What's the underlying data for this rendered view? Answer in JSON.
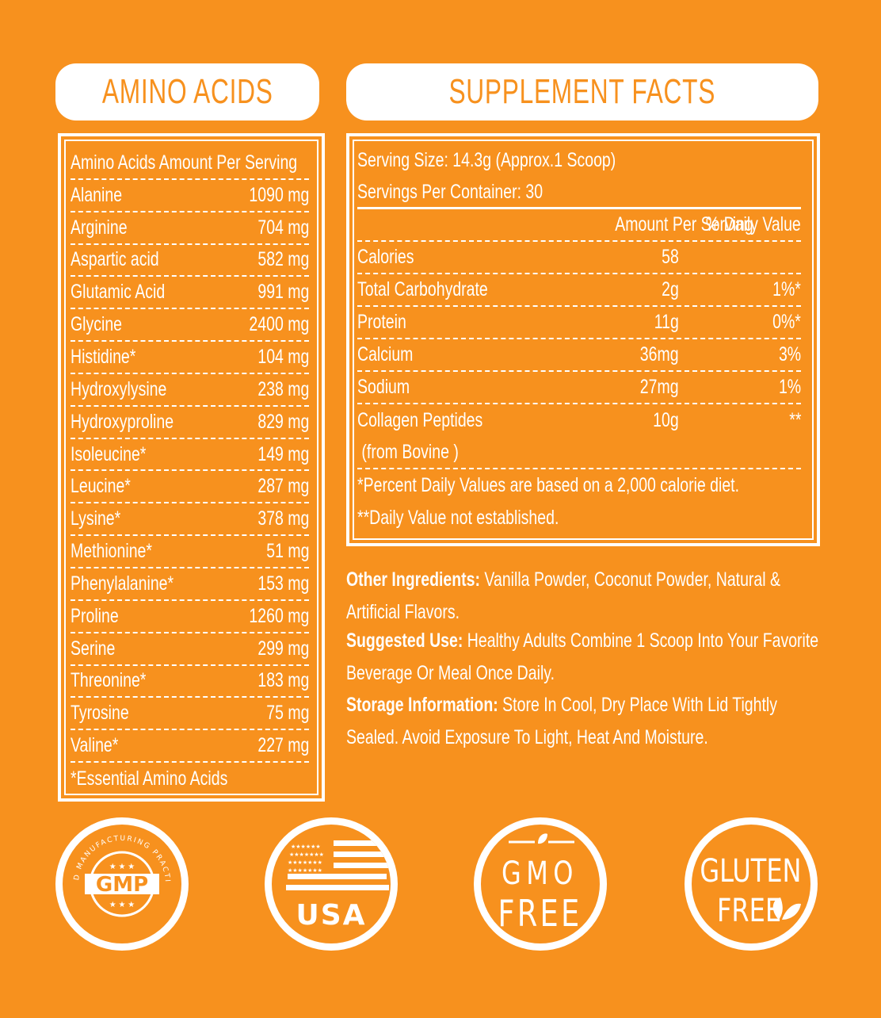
{
  "amino": {
    "title": "AMINO ACIDS",
    "header": "Amino Acids Amount Per Serving",
    "rows": [
      {
        "name": "Alanine",
        "amount": "1090 mg"
      },
      {
        "name": "Arginine",
        "amount": "704 mg"
      },
      {
        "name": "Aspartic acid",
        "amount": "582 mg"
      },
      {
        "name": "Glutamic Acid",
        "amount": "991 mg"
      },
      {
        "name": "Glycine",
        "amount": "2400 mg"
      },
      {
        "name": "Histidine*",
        "amount": "104 mg"
      },
      {
        "name": "Hydroxylysine",
        "amount": "238 mg"
      },
      {
        "name": "Hydroxyproline",
        "amount": "829 mg"
      },
      {
        "name": "Isoleucine*",
        "amount": "149 mg"
      },
      {
        "name": "Leucine*",
        "amount": "287 mg"
      },
      {
        "name": "Lysine*",
        "amount": "378 mg"
      },
      {
        "name": "Methionine*",
        "amount": "51 mg"
      },
      {
        "name": "Phenylalanine*",
        "amount": "153 mg"
      },
      {
        "name": "Proline",
        "amount": "1260 mg"
      },
      {
        "name": "Serine",
        "amount": "299 mg"
      },
      {
        "name": "Threonine*",
        "amount": "183 mg"
      },
      {
        "name": "Tyrosine",
        "amount": "75 mg"
      },
      {
        "name": "Valine*",
        "amount": "227 mg"
      }
    ],
    "footnote": "*Essential Amino Acids"
  },
  "supplement": {
    "title": "SUPPLEMENT FACTS",
    "serving_size": "Serving Size: 14.3g (Approx.1 Scoop)",
    "servings_per_container": "Servings Per Container: 30",
    "col_amount": "Amount Per Serving",
    "col_daily": "% Daily Value",
    "rows": [
      {
        "name": "Calories",
        "amount": "58",
        "daily": ""
      },
      {
        "name": "Total Carbohydrate",
        "amount": "2g",
        "daily": "1%*"
      },
      {
        "name": "Protein",
        "amount": "11g",
        "daily": "0%*"
      },
      {
        "name": "Calcium",
        "amount": "36mg",
        "daily": "3%"
      },
      {
        "name": "Sodium",
        "amount": "27mg",
        "daily": "1%"
      },
      {
        "name": "Collagen Peptides",
        "amount": "10g",
        "daily": "**"
      }
    ],
    "collagen_source": " (from Bovine )",
    "note1": "*Percent Daily Values are based on a 2,000 calorie diet.",
    "note2": "**Daily Value not established."
  },
  "info": {
    "other_label": "Other Ingredients:",
    "other_text": " Vanilla Powder, Coconut Powder, Natural & Artificial Flavors.",
    "use_label": "Suggested Use:",
    "use_text": " Healthy Adults Combine 1 Scoop Into Your Favorite Beverage Or Meal Once Daily.",
    "storage_label": "Storage Information:",
    "storage_text": " Store In Cool, Dry Place With Lid Tightly Sealed. Avoid Exposure To Light, Heat And Moisture."
  },
  "badges": {
    "gmp": {
      "text": "GMP",
      "ring_text": "GOOD MANUFACTURING PRACTICES"
    },
    "usa": {
      "text": "USA"
    },
    "gmo": {
      "line1": "GMO",
      "line2": "FREE"
    },
    "gluten": {
      "line1": "GLUTEN",
      "line2": "FREE"
    }
  },
  "colors": {
    "background": "#f7911e",
    "foreground": "#ffffff"
  }
}
